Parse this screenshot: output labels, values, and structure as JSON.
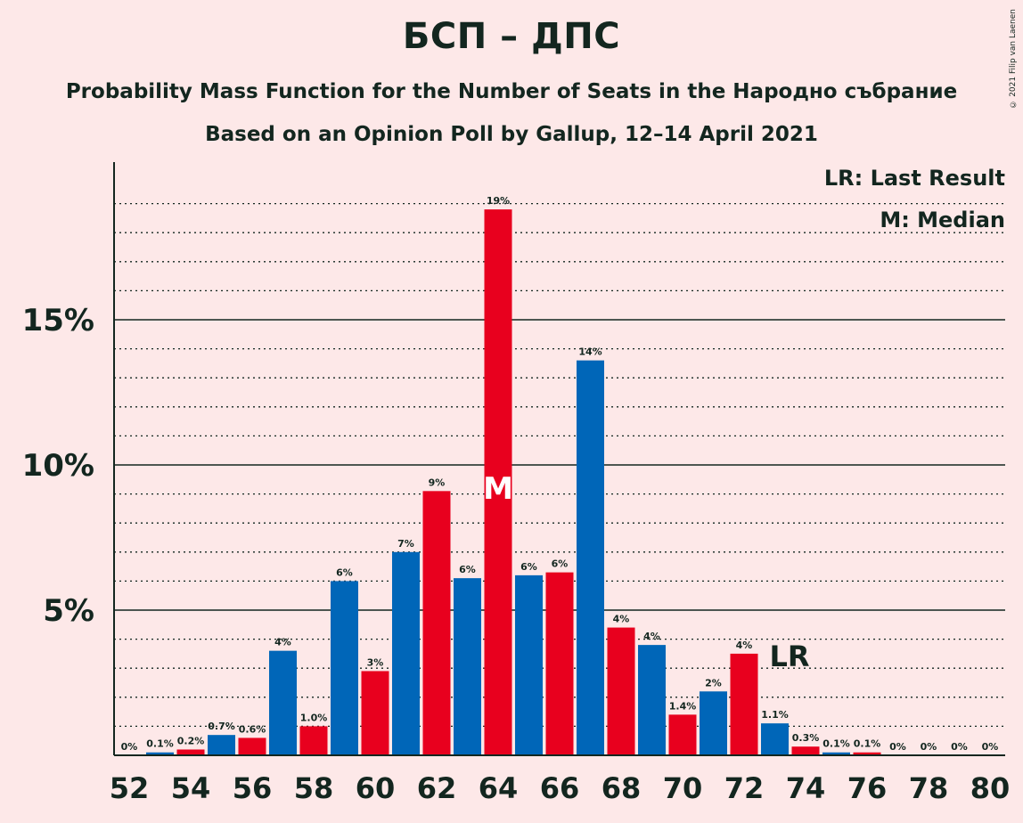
{
  "title": "БСП – ДПС",
  "subtitle": "Probability Mass Function for the Number of Seats in the Народно събрание",
  "subtitle2": "Based on an Opinion Poll by Gallup, 12–14 April 2021",
  "copyright": "© 2021 Filip van Laenen",
  "legend": {
    "last_result": "LR: Last Result",
    "median": "M: Median"
  },
  "colors": {
    "background": "#fde8e8",
    "red": "#e8001e",
    "blue": "#0066b8",
    "text": "#13261f"
  },
  "chart_data": {
    "type": "bar",
    "x": [
      52,
      53,
      54,
      55,
      56,
      57,
      58,
      59,
      60,
      61,
      62,
      63,
      64,
      65,
      66,
      67,
      68,
      69,
      70,
      71,
      72,
      73,
      74,
      75,
      76,
      77,
      78,
      79,
      80
    ],
    "values": [
      0,
      0.1,
      0.2,
      0.7,
      0.6,
      3.6,
      1.0,
      6.0,
      2.9,
      7.0,
      9.1,
      6.1,
      18.8,
      6.2,
      6.3,
      13.6,
      4.4,
      3.8,
      1.4,
      2.2,
      3.5,
      1.1,
      0.3,
      0.1,
      0.1,
      0,
      0,
      0,
      0
    ],
    "labels": [
      "0%",
      "0.1%",
      "0.2%",
      "0.7%",
      "0.6%",
      "4%",
      "1.0%",
      "6%",
      "3%",
      "7%",
      "9%",
      "6%",
      "19%",
      "6%",
      "6%",
      "14%",
      "4%",
      "4%",
      "1.4%",
      "2%",
      "4%",
      "1.1%",
      "0.3%",
      "0.1%",
      "0.1%",
      "0%",
      "0%",
      "0%",
      "0%"
    ],
    "xticks": [
      52,
      54,
      56,
      58,
      60,
      62,
      64,
      66,
      68,
      70,
      72,
      74,
      76,
      78,
      80
    ],
    "yticks": [
      5,
      10,
      15
    ],
    "ytick_labels": [
      "5%",
      "10%",
      "15%"
    ],
    "ylim": [
      0,
      20
    ],
    "median": 64,
    "median_label": "M",
    "last_result": 73,
    "last_result_label": "LR"
  }
}
